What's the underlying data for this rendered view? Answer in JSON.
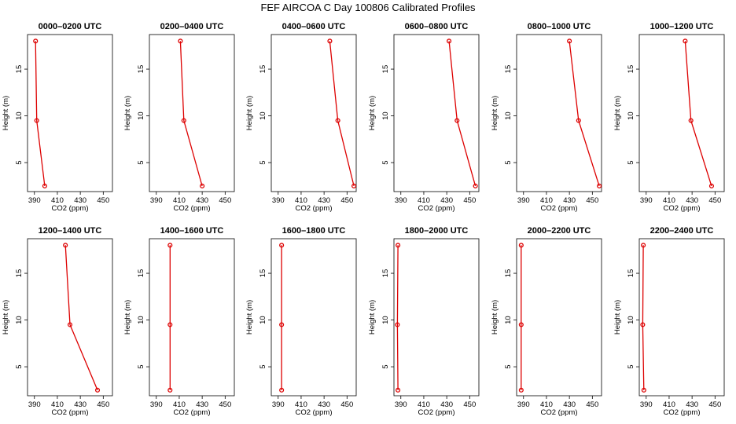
{
  "chart_data": {
    "type": "line",
    "title": "FEF AIRCOA C  Day 100806  Calibrated Profiles",
    "xlabel": "CO2 (ppm)",
    "ylabel": "Height (m)",
    "xlim": [
      384,
      458
    ],
    "ylim": [
      1.9,
      18.7
    ],
    "xticks": [
      390,
      410,
      430,
      450
    ],
    "yticks": [
      5,
      10,
      15
    ],
    "heights": [
      18,
      9.5,
      2.5
    ],
    "panels": [
      {
        "title": "0000–0200 UTC",
        "co2": [
          391.0,
          392.0,
          399.0
        ]
      },
      {
        "title": "0200–0400 UTC",
        "co2": [
          411.0,
          414.0,
          430.0
        ]
      },
      {
        "title": "0400–0600 UTC",
        "co2": [
          435.0,
          442.0,
          456.0
        ]
      },
      {
        "title": "0600–0800 UTC",
        "co2": [
          432.0,
          439.0,
          455.0
        ]
      },
      {
        "title": "0800–1000 UTC",
        "co2": [
          430.0,
          438.0,
          456.0
        ]
      },
      {
        "title": "1000–1200 UTC",
        "co2": [
          424.0,
          429.0,
          447.0
        ]
      },
      {
        "title": "1200–1400 UTC",
        "co2": [
          417.0,
          421.0,
          445.0
        ]
      },
      {
        "title": "1400–1600 UTC",
        "co2": [
          402.0,
          402.0,
          402.0
        ]
      },
      {
        "title": "1600–1800 UTC",
        "co2": [
          393.0,
          393.0,
          393.0
        ]
      },
      {
        "title": "1800–2000 UTC",
        "co2": [
          387.5,
          387.0,
          387.5
        ]
      },
      {
        "title": "2000–2200 UTC",
        "co2": [
          388.0,
          388.0,
          388.0
        ]
      },
      {
        "title": "2200–2400 UTC",
        "co2": [
          387.5,
          387.0,
          388.0
        ]
      }
    ]
  }
}
